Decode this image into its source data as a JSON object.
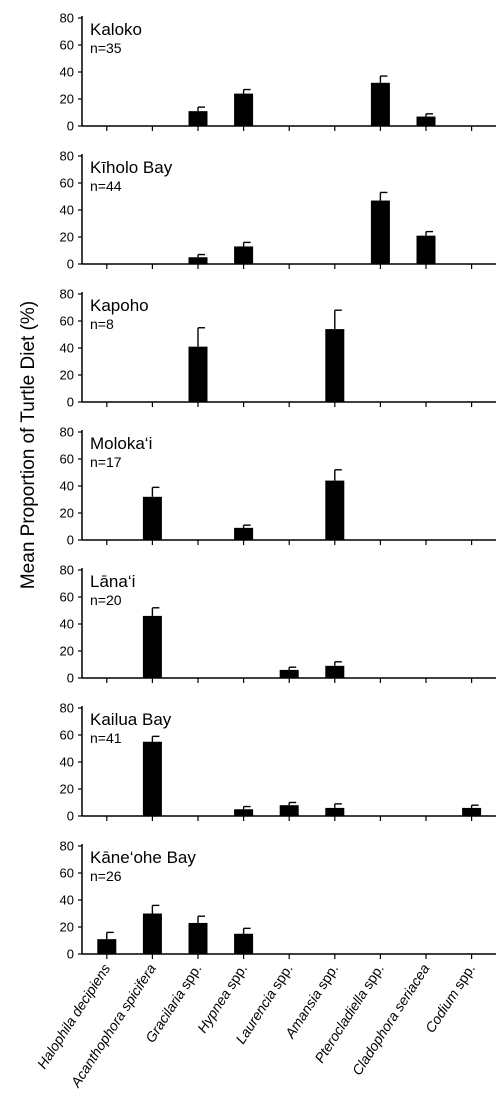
{
  "chart_data": {
    "type": "bar",
    "ylabel": "Mean Proportion of Turtle Diet (%)",
    "ylim": [
      0,
      80
    ],
    "yticks": [
      0,
      20,
      40,
      60,
      80
    ],
    "categories": [
      {
        "italic": "Halophila decipiens",
        "suffix": ""
      },
      {
        "italic": "Acanthophora spicifera",
        "suffix": ""
      },
      {
        "italic": "Gracilaria",
        "suffix": " spp."
      },
      {
        "italic": "Hypnea",
        "suffix": " spp."
      },
      {
        "italic": "Laurencia",
        "suffix": " spp."
      },
      {
        "italic": "Amansia",
        "suffix": " spp."
      },
      {
        "italic": "Pterocladiella",
        "suffix": " spp."
      },
      {
        "italic": "Cladophora seriacea",
        "suffix": ""
      },
      {
        "italic": "Codium",
        "suffix": " spp."
      }
    ],
    "panels": [
      {
        "site": "Kaloko",
        "n": "n=35",
        "values": [
          0,
          0,
          11,
          24,
          0,
          0,
          32,
          7,
          0
        ],
        "errors": [
          0,
          0,
          3,
          3,
          0,
          0,
          5,
          2,
          0
        ]
      },
      {
        "site": "Kīholo Bay",
        "n": "n=44",
        "values": [
          0,
          0,
          5,
          13,
          0,
          0,
          47,
          21,
          0
        ],
        "errors": [
          0,
          0,
          2,
          3,
          0,
          0,
          6,
          3,
          0
        ]
      },
      {
        "site": "Kapoho",
        "n": "n=8",
        "values": [
          0,
          0,
          41,
          0,
          0,
          54,
          0,
          0,
          0
        ],
        "errors": [
          0,
          0,
          14,
          0,
          0,
          14,
          0,
          0,
          0
        ]
      },
      {
        "site": "Moloka‘i",
        "n": "n=17",
        "values": [
          0,
          32,
          0,
          9,
          0,
          44,
          0,
          0,
          0
        ],
        "errors": [
          0,
          7,
          0,
          2,
          0,
          8,
          0,
          0,
          0
        ]
      },
      {
        "site": "Lāna‘i",
        "n": "n=20",
        "values": [
          0,
          46,
          0,
          0,
          6,
          9,
          0,
          0,
          0
        ],
        "errors": [
          0,
          6,
          0,
          0,
          2,
          3,
          0,
          0,
          0
        ]
      },
      {
        "site": "Kailua Bay",
        "n": "n=41",
        "values": [
          0,
          55,
          0,
          5,
          8,
          6,
          0,
          0,
          6
        ],
        "errors": [
          0,
          4,
          0,
          2,
          2,
          3,
          0,
          0,
          2
        ]
      },
      {
        "site": "Kāne‘ohe Bay",
        "n": "n=26",
        "values": [
          11,
          30,
          23,
          15,
          0,
          0,
          0,
          0,
          0
        ],
        "errors": [
          5,
          6,
          5,
          4,
          0,
          0,
          0,
          0,
          0
        ]
      }
    ]
  }
}
